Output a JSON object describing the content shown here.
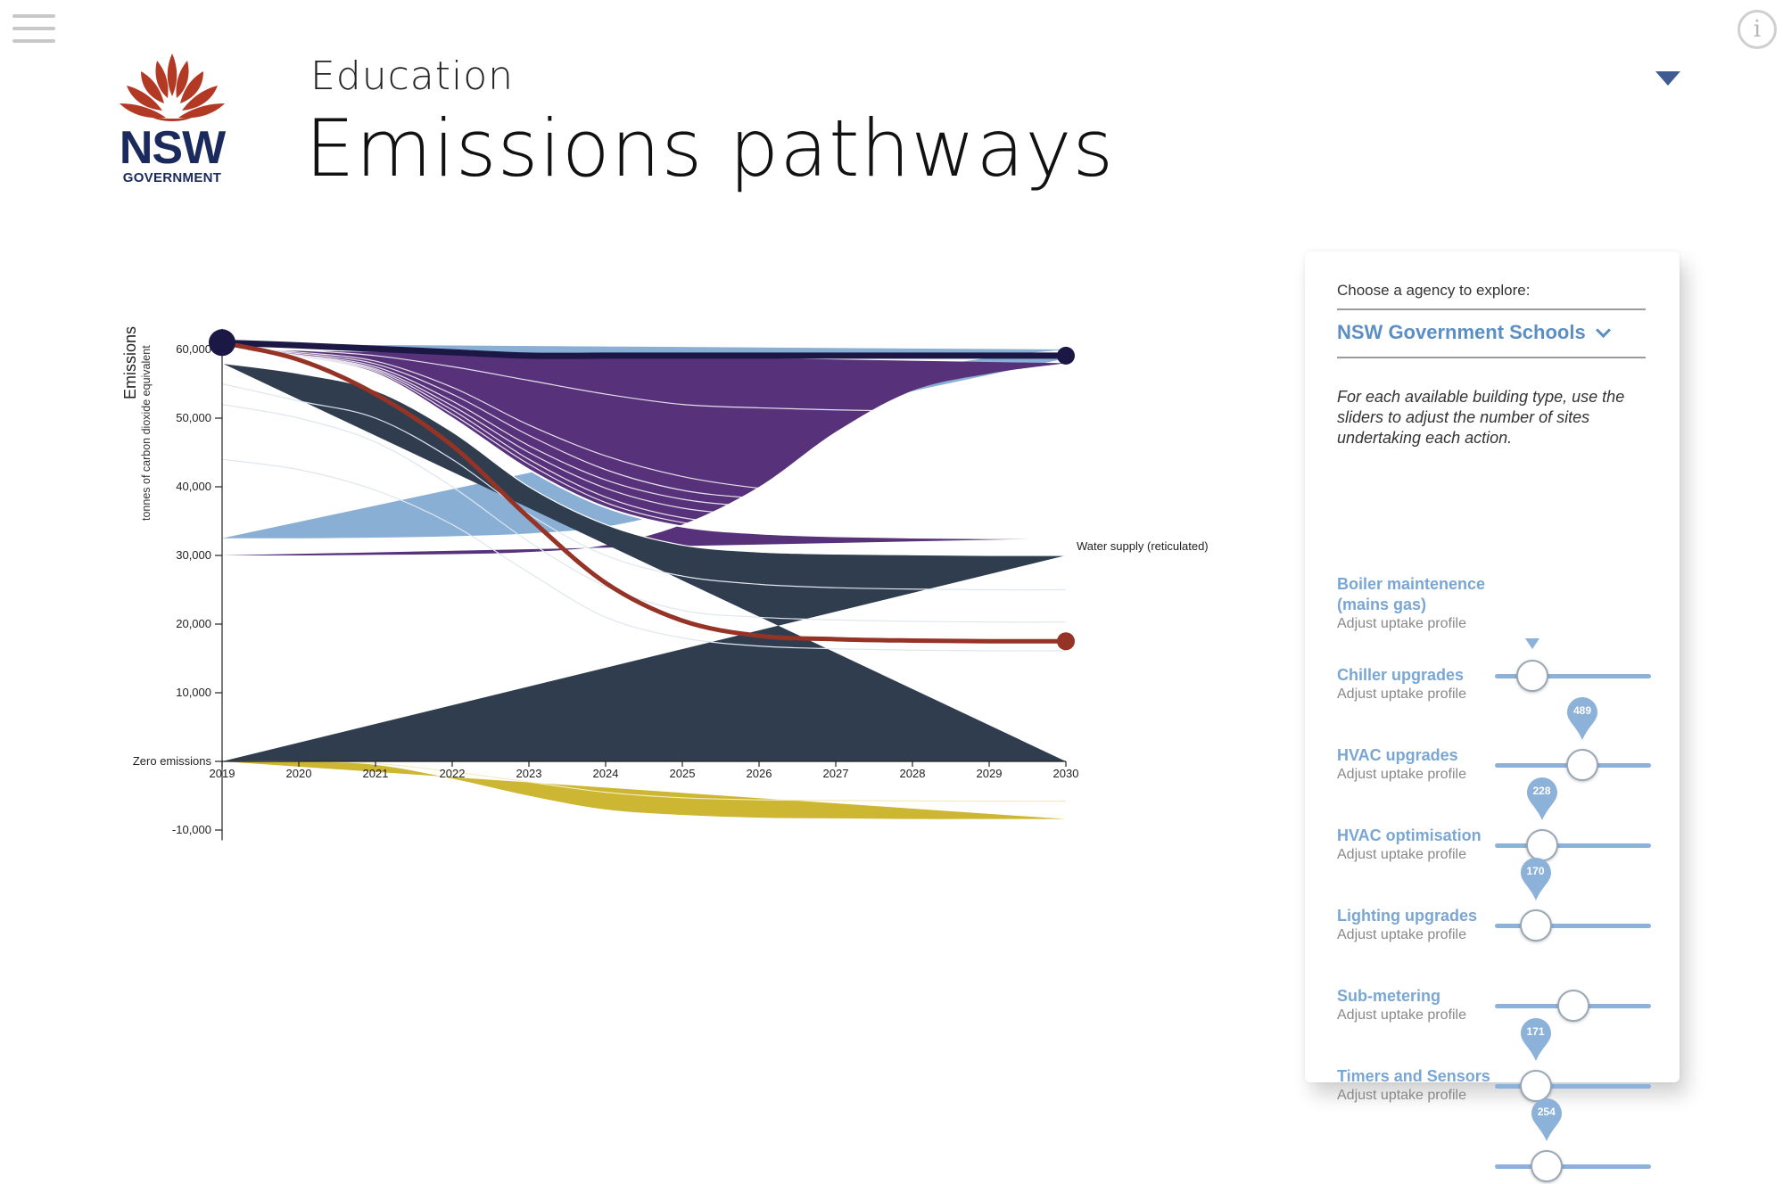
{
  "header": {
    "subtitle": "Education",
    "title": "Emissions pathways",
    "logo": {
      "mark": "NSW",
      "text": "GOVERNMENT"
    },
    "menu_icon": "hamburger-icon",
    "info_icon": "info-icon",
    "info_glyph": "i"
  },
  "panel": {
    "agency_label": "Choose a agency to explore:",
    "agency_value": "NSW Government Schools",
    "instructions": "For each available building type, use the sliders to adjust the number of sites undertaking each action.",
    "actions": [
      {
        "name": "Boiler maintenence (mains gas)",
        "sub": "Adjust uptake profile",
        "position": 0.24,
        "value": null
      },
      {
        "name": "Chiller upgrades",
        "sub": "Adjust uptake profile",
        "position": 0.56,
        "value": "489"
      },
      {
        "name": "HVAC upgrades",
        "sub": "Adjust uptake profile",
        "position": 0.3,
        "value": "228"
      },
      {
        "name": "HVAC optimisation",
        "sub": "Adjust uptake profile",
        "position": 0.26,
        "value": "170"
      },
      {
        "name": "Lighting upgrades",
        "sub": "Adjust uptake profile",
        "position": 0.5,
        "value": null
      },
      {
        "name": "Sub-metering",
        "sub": "Adjust uptake profile",
        "position": 0.26,
        "value": "171"
      },
      {
        "name": "Timers and Sensors",
        "sub": "Adjust uptake profile",
        "position": 0.33,
        "value": "254"
      }
    ]
  },
  "colors": {
    "dark_slate": "#2f3d4f",
    "purple": "#57317a",
    "light_blue": "#8aafd4",
    "navy": "#1c1846",
    "yellow": "#cdb631",
    "red": "#963327",
    "accent": "#5b8fc4",
    "logo_red": "#b23a25",
    "logo_navy": "#1b2a5c"
  },
  "chart_data": {
    "type": "area",
    "ylabel": "Emissions",
    "ylabel_sub": "tonnes of carbon dioxide equivalent",
    "x": [
      2019,
      2020,
      2021,
      2022,
      2023,
      2024,
      2025,
      2026,
      2027,
      2028,
      2029,
      2030
    ],
    "x_tick_labels": [
      "2019",
      "2020",
      "2021",
      "2022",
      "2023",
      "2024",
      "2025",
      "2026",
      "2027",
      "2028",
      "2029",
      "2030"
    ],
    "y_ticks": [
      {
        "value": 60000,
        "label": "60,000"
      },
      {
        "value": 50000,
        "label": "50,000"
      },
      {
        "value": 40000,
        "label": "40,000"
      },
      {
        "value": 30000,
        "label": "30,000"
      },
      {
        "value": 20000,
        "label": "20,000"
      },
      {
        "value": 10000,
        "label": "10,000"
      },
      {
        "value": 0,
        "label": "Zero emissions"
      },
      {
        "value": -10000,
        "label": "-10,000"
      }
    ],
    "ylim": [
      -15000,
      62000
    ],
    "series_label": "Water supply (reticulated)",
    "layers": {
      "dark_top": [
        58000,
        56500,
        54000,
        48000,
        40000,
        34500,
        31500,
        30500,
        30200,
        30100,
        30000,
        30000
      ],
      "purple_top": [
        60000,
        58800,
        56500,
        50000,
        42500,
        37000,
        34200,
        33200,
        32800,
        32600,
        32500,
        32500
      ],
      "blue_top": [
        60800,
        60200,
        59600,
        59000,
        58700,
        58700,
        58700,
        58700,
        58700,
        58700,
        58700,
        58700
      ],
      "dark_inner_lines": [
        [
          55000,
          52500,
          50000,
          44000,
          36000,
          30000,
          27000,
          25800,
          25300,
          25100,
          25000,
          25000
        ],
        [
          52000,
          50000,
          46500,
          40000,
          32000,
          25500,
          22000,
          21000,
          20600,
          20400,
          20300,
          20300
        ],
        [
          44000,
          42500,
          39500,
          34500,
          27500,
          21000,
          18000,
          16800,
          16400,
          16200,
          16100,
          16100
        ]
      ],
      "blue_inner_lines": [
        [
          60500,
          59900,
          59100,
          57500,
          55500,
          53500,
          52000,
          51500,
          51200,
          51000,
          51000,
          51000
        ],
        [
          60400,
          59600,
          58300,
          54500,
          49000,
          44500,
          41500,
          39800,
          39000,
          38800,
          38700,
          38700
        ],
        [
          60300,
          59400,
          57900,
          53500,
          47500,
          42500,
          39500,
          38300,
          37700,
          37500,
          37400,
          37400
        ],
        [
          60200,
          59200,
          57500,
          52500,
          46000,
          41000,
          38200,
          37100,
          36700,
          36500,
          36400,
          36400
        ],
        [
          60150,
          59100,
          57200,
          51800,
          45000,
          39800,
          36900,
          35900,
          35500,
          35300,
          35200,
          35200
        ],
        [
          60100,
          59000,
          57000,
          51200,
          44000,
          38500,
          35500,
          34500,
          34100,
          33900,
          33800,
          33800
        ],
        [
          60050,
          58900,
          56800,
          50600,
          43300,
          37700,
          34800,
          33800,
          33400,
          33200,
          33100,
          33100
        ]
      ],
      "offset_bottom": [
        0,
        0,
        -500,
        -2500,
        -5000,
        -7000,
        -7800,
        -8200,
        -8300,
        -8400,
        -8400,
        -8400
      ],
      "offset_inner_line": [
        0,
        0,
        -300,
        -1500,
        -3000,
        -4500,
        -5300,
        -5600,
        -5700,
        -5750,
        -5800,
        -5800
      ]
    },
    "top_line": [
      61000,
      60600,
      60100,
      59600,
      59100,
      59100,
      59100,
      59100,
      59100,
      59100,
      59100,
      59100
    ],
    "pathway_line": [
      61000,
      58500,
      53500,
      46000,
      35500,
      26000,
      20500,
      18300,
      17800,
      17600,
      17500,
      17500
    ]
  }
}
